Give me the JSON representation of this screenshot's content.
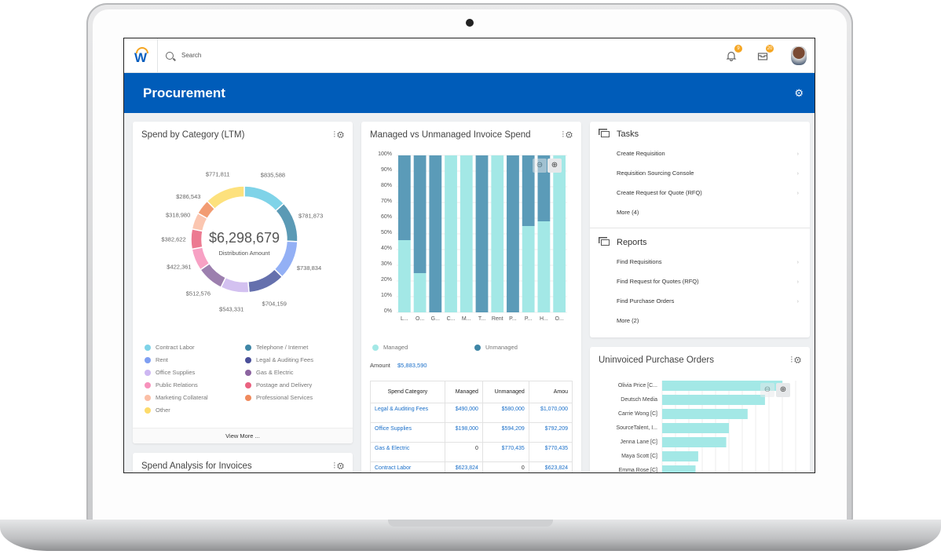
{
  "topbar": {
    "logo": "W",
    "search_placeholder": "Search",
    "notifications_count": "9",
    "inbox_count": "20"
  },
  "banner": {
    "title": "Procurement"
  },
  "spend_by_category": {
    "title": "Spend by Category (LTM)",
    "total": "$6,298,679",
    "total_label": "Distribution Amount",
    "view_more": "View More ...",
    "chart_data": {
      "type": "pie",
      "donut": true,
      "slices": [
        {
          "label": "$835,588",
          "value": 835588,
          "color": "#7fd3e8"
        },
        {
          "label": "$781,873",
          "value": 781873,
          "color": "#5b9ab5"
        },
        {
          "label": "$738,834",
          "value": 738834,
          "color": "#93b0f5"
        },
        {
          "label": "$704,159",
          "value": 704159,
          "color": "#6570ad"
        },
        {
          "label": "$543,331",
          "value": 543331,
          "color": "#d3c1f0"
        },
        {
          "label": "$512,576",
          "value": 512576,
          "color": "#9c7fae"
        },
        {
          "label": "$422,361",
          "value": 422361,
          "color": "#f7a1c4"
        },
        {
          "label": "$382,622",
          "value": 382622,
          "color": "#ec7a91"
        },
        {
          "label": "$318,980",
          "value": 318980,
          "color": "#fbc6b0"
        },
        {
          "label": "$286,543",
          "value": 286543,
          "color": "#f29c72"
        },
        {
          "label": "$771,811",
          "value": 771811,
          "color": "#fde17d"
        }
      ],
      "legend": [
        {
          "label": "Contract Labor",
          "color": "#7fd3e8"
        },
        {
          "label": "Telephone / Internet",
          "color": "#3f86a6"
        },
        {
          "label": "Rent",
          "color": "#7f9ff2"
        },
        {
          "label": "Legal & Auditing Fees",
          "color": "#4a4f99"
        },
        {
          "label": "Office Supplies",
          "color": "#cdb7f2"
        },
        {
          "label": "Gas & Electric",
          "color": "#8c64a0"
        },
        {
          "label": "Public Relations",
          "color": "#f792bc"
        },
        {
          "label": "Postage and Delivery",
          "color": "#ea6280"
        },
        {
          "label": "Marketing Collateral",
          "color": "#fbbfa6"
        },
        {
          "label": "Professional Services",
          "color": "#f08a5d"
        },
        {
          "label": "Other",
          "color": "#fddb6b"
        }
      ]
    }
  },
  "spend_analysis": {
    "title": "Spend Analysis for Invoices"
  },
  "managed_vs_unmanaged": {
    "title": "Managed vs Unmanaged Invoice Spend",
    "amount_label": "Amount",
    "amount": "$5,883,590",
    "chart_data": {
      "type": "bar",
      "stacked": true,
      "ylim": [
        0,
        100
      ],
      "yticks": [
        "0%",
        "10%",
        "20%",
        "30%",
        "40%",
        "50%",
        "60%",
        "70%",
        "80%",
        "90%",
        "100%"
      ],
      "categories": [
        "L...",
        "O...",
        "G...",
        "C...",
        "M...",
        "T...",
        "Rent",
        "P...",
        "P...",
        "H...",
        "O..."
      ],
      "series": [
        {
          "name": "Managed",
          "color": "#a3e8e6",
          "values": [
            46,
            25,
            0,
            100,
            100,
            0,
            100,
            0,
            55,
            58,
            100
          ]
        },
        {
          "name": "Unmanaged",
          "color": "#5b9bb8",
          "values": [
            54,
            75,
            100,
            0,
            0,
            100,
            0,
            100,
            45,
            42,
            0
          ]
        }
      ],
      "legend": "bottom"
    },
    "table": {
      "headers": [
        "Spend Category",
        "Managed",
        "Unmanaged",
        "Amou"
      ],
      "rows": [
        [
          "Legal & Auditing Fees",
          "$490,000",
          "$580,000",
          "$1,070,000"
        ],
        [
          "Office Supplies",
          "$198,000",
          "$594,209",
          "$792,209"
        ],
        [
          "Gas & Electric",
          "0",
          "$770,435",
          "$770,435"
        ],
        [
          "Contract Labor",
          "$623,824",
          "0",
          "$623,824"
        ]
      ]
    }
  },
  "tasks": {
    "title": "Tasks",
    "items": [
      "Create Requisition",
      "Requisition Sourcing Console",
      "Create Request for Quote (RFQ)",
      "More (4)"
    ]
  },
  "reports": {
    "title": "Reports",
    "items": [
      "Find Requisitions",
      "Find Request for Quotes (RFQ)",
      "Find Purchase Orders",
      "More (2)"
    ]
  },
  "uninvoiced": {
    "title": "Uninvoiced Purchase Orders",
    "chart_data": {
      "type": "bar",
      "orientation": "horizontal",
      "color": "#a3e8e6",
      "categories": [
        "Olivia Price [C...",
        "Deutsch Media",
        "Carrie Wong [C]",
        "SourceTalent, I...",
        "Jenna Lane [C]",
        "Maya Scott [C]",
        "Emma Rose [C]"
      ],
      "values_percent_of_axis": [
        90,
        77,
        64,
        50,
        48,
        27,
        25
      ]
    }
  }
}
